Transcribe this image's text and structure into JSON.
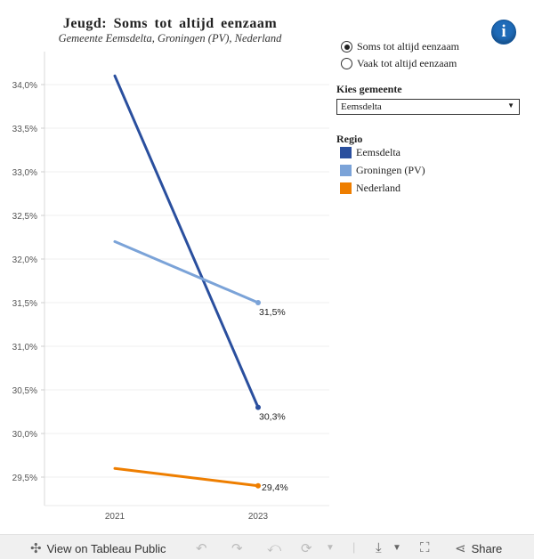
{
  "header": {
    "title": "Jeugd: Soms tot altijd eenzaam",
    "subtitle": "Gemeente Eemsdelta, Groningen (PV), Nederland",
    "info_icon": "i"
  },
  "controls": {
    "radio": [
      {
        "label": "Soms tot altijd eenzaam",
        "selected": true
      },
      {
        "label": "Vaak tot altijd eenzaam",
        "selected": false
      }
    ],
    "gemeente_label": "Kies gemeente",
    "gemeente_value": "Eemsdelta",
    "legend_title": "Regio",
    "legend": [
      {
        "name": "Eemsdelta",
        "color": "#2a4f9e"
      },
      {
        "name": "Groningen (PV)",
        "color": "#7ba3d8"
      },
      {
        "name": "Nederland",
        "color": "#ee7e00"
      }
    ]
  },
  "chart_data": {
    "type": "line",
    "title": "Jeugd: Soms tot altijd eenzaam",
    "subtitle": "Gemeente Eemsdelta, Groningen (PV), Nederland",
    "x": [
      "2021",
      "2023"
    ],
    "ylim": [
      29.2,
      34.4
    ],
    "yticks": [
      29.5,
      30.0,
      30.5,
      31.0,
      31.5,
      32.0,
      32.5,
      33.0,
      33.5,
      34.0
    ],
    "ytick_labels": [
      "29,5%",
      "30,0%",
      "30,5%",
      "31,0%",
      "31,5%",
      "32,0%",
      "32,5%",
      "33,0%",
      "33,5%",
      "34,0%"
    ],
    "series": [
      {
        "name": "Eemsdelta",
        "color": "#2a4f9e",
        "values": [
          34.1,
          30.3
        ],
        "end_label": "30,3%"
      },
      {
        "name": "Groningen (PV)",
        "color": "#7ba3d8",
        "values": [
          32.2,
          31.5
        ],
        "end_label": "31,5%"
      },
      {
        "name": "Nederland",
        "color": "#ee7e00",
        "values": [
          29.6,
          29.4
        ],
        "end_label": "29,4%"
      }
    ],
    "grid": true
  },
  "toolbar": {
    "view_label": "View on Tableau Public",
    "share_label": "Share"
  }
}
